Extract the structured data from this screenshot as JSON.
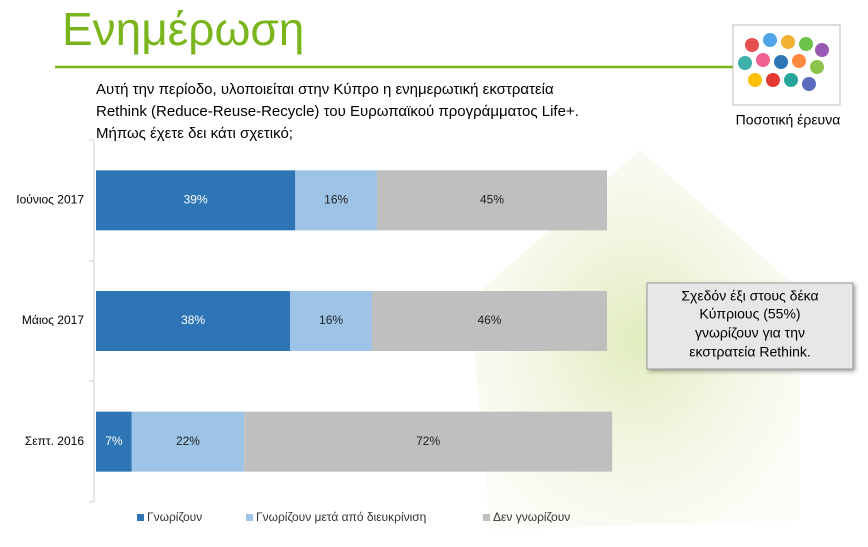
{
  "title": "Ενημέρωση",
  "question": [
    "Αυτή την περίοδο, υλοποιείται στην Κύπρο η ενημερωτική εκστρατεία",
    "Rethink (Reduce-Reuse-Recycle) του Ευρωπαϊκού προγράμματος Life+.",
    "Μήπως έχετε δει κάτι σχετικό;"
  ],
  "badge_label": "Ποσοτική έρευνα",
  "callout": [
    "Σχεδόν έξι στους δέκα",
    "Κύπριους (55%)",
    "γνωρίζουν για την",
    "εκστρατεία Rethink."
  ],
  "chart_data": {
    "type": "stacked-bar-horizontal",
    "categories": [
      "Ιούνιος 2017",
      "Μάιος 2017",
      "Σεπτ. 2016"
    ],
    "series": [
      {
        "name": "Γνωρίζουν",
        "color": "#2e75b6",
        "values": [
          39,
          38,
          7
        ],
        "value_labels": [
          "39%",
          "38%",
          "7%"
        ]
      },
      {
        "name": "Γνωρίζουν μετά από διευκρίνιση",
        "color": "#9dc3e6",
        "values": [
          16,
          16,
          22
        ],
        "value_labels": [
          "16%",
          "16%",
          "22%"
        ]
      },
      {
        "name": "Δεν γνωρίζουν",
        "color": "#bfbfbf",
        "values": [
          45,
          46,
          72
        ],
        "value_labels": [
          "45%",
          "46%",
          "72%"
        ]
      }
    ],
    "xlim": [
      0,
      100
    ],
    "legend": "bottom"
  }
}
